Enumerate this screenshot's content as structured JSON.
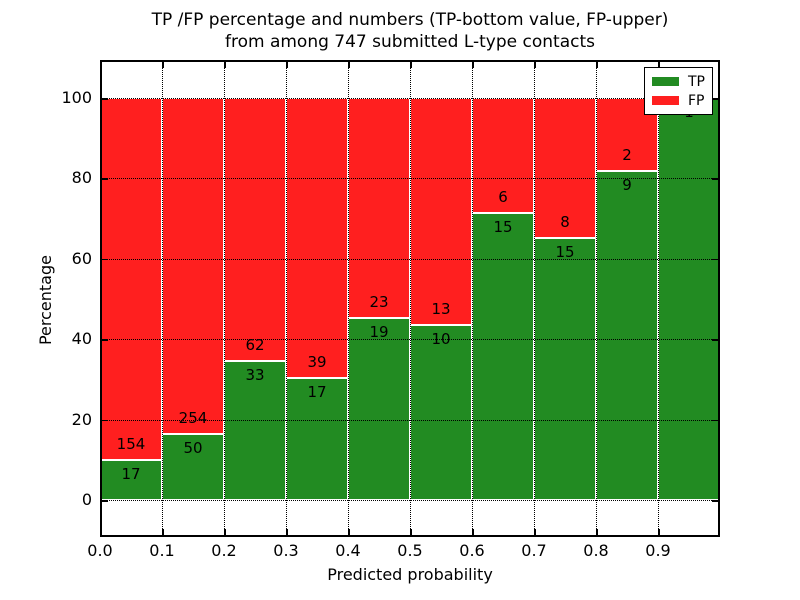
{
  "title": {
    "line1": "TP /FP percentage and numbers (TP-bottom value, FP-upper)",
    "line2": "from among 747 submitted L-type contacts"
  },
  "axes": {
    "xlabel": "Predicted probability",
    "ylabel": "Percentage",
    "x_tick_labels": [
      "0.0",
      "0.1",
      "0.2",
      "0.3",
      "0.4",
      "0.5",
      "0.6",
      "0.7",
      "0.8",
      "0.9"
    ],
    "y_tick_labels": [
      "0",
      "20",
      "40",
      "60",
      "80",
      "100"
    ],
    "y_tick_values": [
      0,
      20,
      40,
      60,
      80,
      100
    ],
    "grid_style": "dotted"
  },
  "legend": {
    "position": "upper right",
    "items": [
      {
        "label": "TP",
        "color": "#228b22"
      },
      {
        "label": "FP",
        "color": "#ff1f1f"
      }
    ]
  },
  "colors": {
    "tp": "#228b22",
    "fp": "#ff1f1f",
    "grid": "#000000",
    "background": "#ffffff"
  },
  "chart_data": {
    "type": "bar",
    "stacked": true,
    "normalized": "each bin stacks to 100%",
    "title": "TP /FP percentage and numbers (TP-bottom value, FP-upper) from among 747 submitted L-type contacts",
    "xlabel": "Predicted probability",
    "ylabel": "Percentage",
    "total_submitted": 747,
    "bins": [
      "0.0-0.1",
      "0.1-0.2",
      "0.2-0.3",
      "0.3-0.4",
      "0.4-0.5",
      "0.5-0.6",
      "0.6-0.7",
      "0.7-0.8",
      "0.8-0.9",
      "0.9-1.0"
    ],
    "series": [
      {
        "name": "TP",
        "counts": [
          17,
          50,
          33,
          17,
          19,
          10,
          15,
          15,
          9,
          1
        ],
        "percent": [
          9.9,
          16.4,
          34.7,
          30.4,
          45.2,
          43.5,
          71.4,
          65.2,
          81.8,
          100.0
        ]
      },
      {
        "name": "FP",
        "counts": [
          154,
          254,
          62,
          39,
          23,
          13,
          6,
          8,
          2,
          0
        ],
        "percent": [
          90.1,
          83.6,
          65.3,
          69.6,
          54.8,
          56.5,
          28.6,
          34.8,
          18.2,
          0.0
        ]
      }
    ],
    "xlim": [
      0.0,
      1.0
    ],
    "ylim": [
      -9,
      109
    ],
    "grid": true,
    "legend_position": "upper right"
  }
}
